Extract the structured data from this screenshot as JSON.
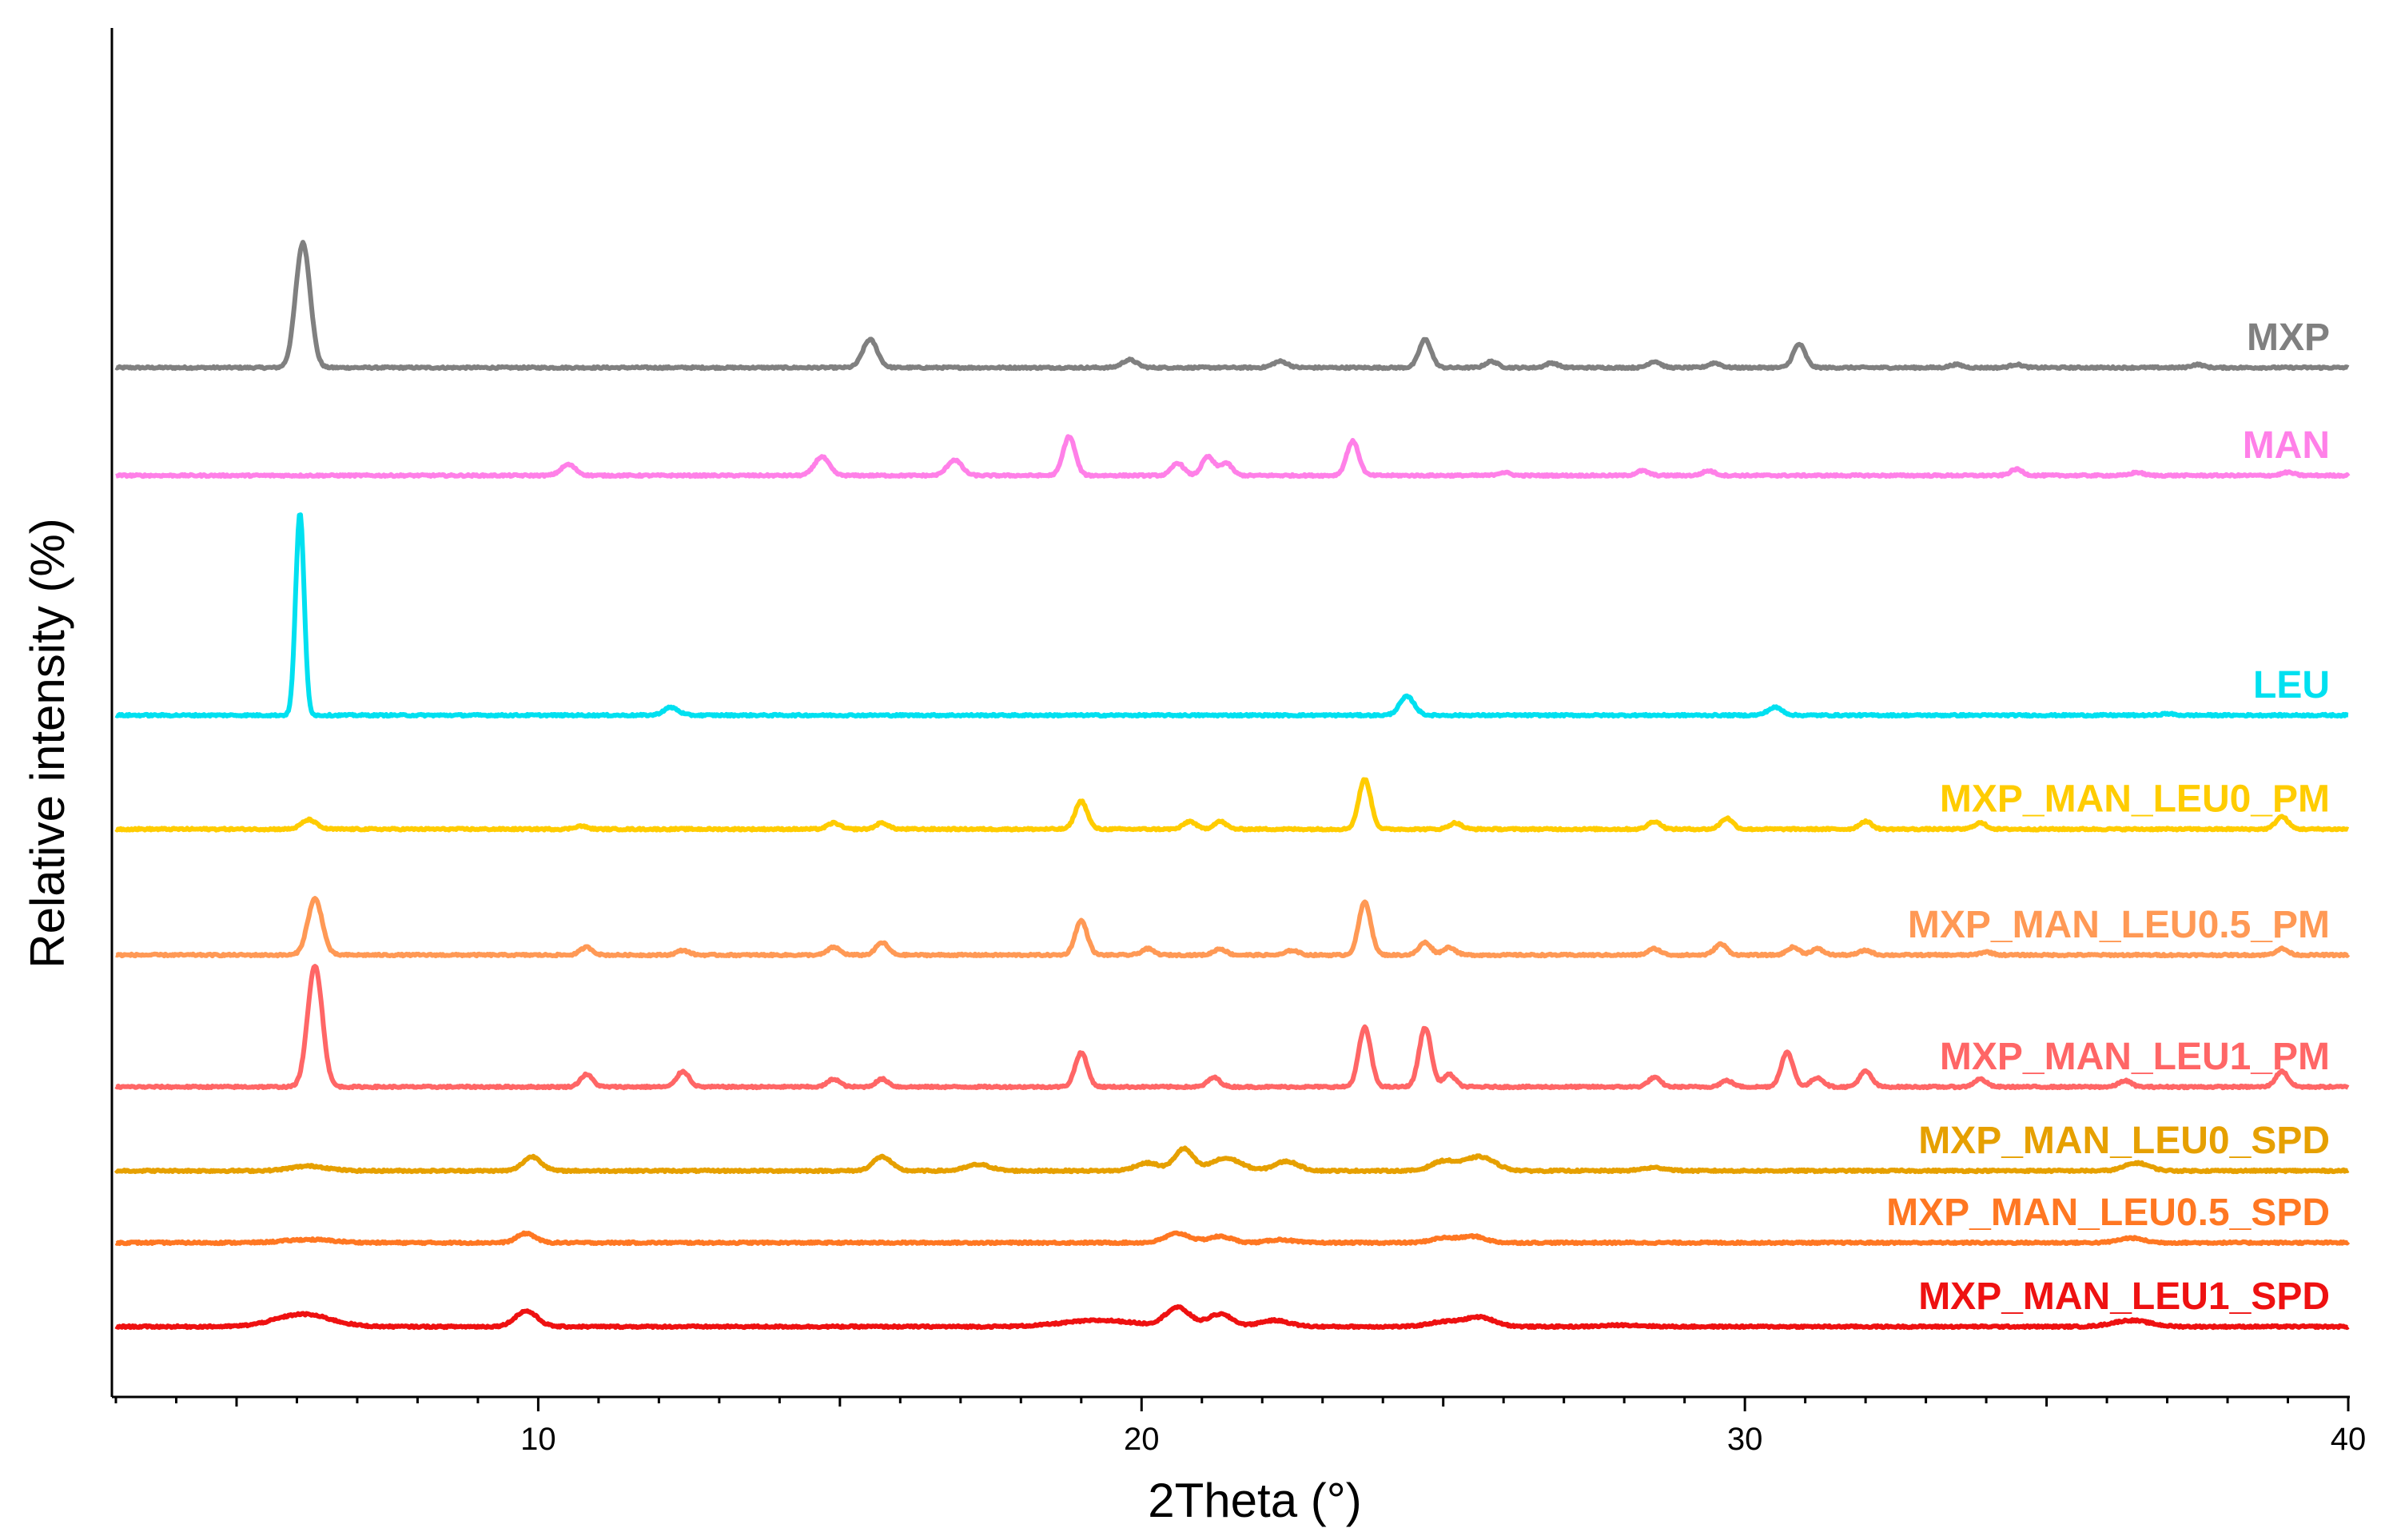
{
  "chart_data": {
    "type": "line",
    "xlabel": "2Theta (°)",
    "ylabel": "Relative intensity (%)",
    "xlim": [
      3,
      40
    ],
    "x_ticks": [
      10,
      20,
      30,
      40
    ],
    "x_tick_labels": [
      "10",
      "20",
      "30",
      "40"
    ],
    "y_ticks_shown": false,
    "grid": false,
    "legend": "labels at right end of each trace",
    "series": [
      {
        "name": "MXP",
        "color": "#808080",
        "baseline": 8,
        "peaks": [
          [
            6.1,
            80,
            0.12
          ],
          [
            15.5,
            18,
            0.12
          ],
          [
            19.8,
            5,
            0.12
          ],
          [
            22.3,
            4,
            0.12
          ],
          [
            24.7,
            18,
            0.1
          ],
          [
            25.8,
            4,
            0.1
          ],
          [
            26.8,
            3,
            0.1
          ],
          [
            28.5,
            4,
            0.1
          ],
          [
            29.5,
            3,
            0.1
          ],
          [
            30.9,
            15,
            0.1
          ],
          [
            33.5,
            2,
            0.1
          ],
          [
            34.5,
            2,
            0.1
          ],
          [
            37.5,
            2,
            0.1
          ]
        ]
      },
      {
        "name": "MAN",
        "color": "#ff80e8",
        "baseline": 7.1,
        "peaks": [
          [
            10.5,
            7,
            0.12
          ],
          [
            14.7,
            12,
            0.12
          ],
          [
            16.9,
            10,
            0.12
          ],
          [
            18.8,
            25,
            0.1
          ],
          [
            20.6,
            8,
            0.1
          ],
          [
            21.1,
            12,
            0.1
          ],
          [
            21.4,
            8,
            0.1
          ],
          [
            23.5,
            22,
            0.1
          ],
          [
            26,
            2,
            0.1
          ],
          [
            28.3,
            3,
            0.1
          ],
          [
            29.4,
            3,
            0.1
          ],
          [
            34.5,
            4,
            0.1
          ],
          [
            36.5,
            2,
            0.1
          ],
          [
            39,
            2,
            0.1
          ]
        ]
      },
      {
        "name": "LEU",
        "color": "#00e0f0",
        "baseline": 5.1,
        "peaks": [
          [
            6.05,
            130,
            0.07
          ],
          [
            12.2,
            5,
            0.12
          ],
          [
            24.4,
            12,
            0.12
          ],
          [
            30.5,
            5,
            0.12
          ],
          [
            37,
            1,
            0.1
          ]
        ]
      },
      {
        "name": "MXP_MAN_LEU0_PM",
        "color": "#ffcc00",
        "baseline": 4.15,
        "peaks": [
          [
            6.2,
            6,
            0.12
          ],
          [
            10.7,
            2,
            0.1
          ],
          [
            14.9,
            4,
            0.1
          ],
          [
            15.7,
            4,
            0.1
          ],
          [
            19,
            18,
            0.1
          ],
          [
            20.8,
            5,
            0.1
          ],
          [
            21.3,
            5,
            0.1
          ],
          [
            23.7,
            32,
            0.1
          ],
          [
            25.2,
            4,
            0.1
          ],
          [
            28.5,
            5,
            0.1
          ],
          [
            29.7,
            7,
            0.1
          ],
          [
            32,
            5,
            0.1
          ],
          [
            33.9,
            4,
            0.1
          ],
          [
            38.9,
            8,
            0.1
          ]
        ]
      },
      {
        "name": "MXP_MAN_LEU0.5_PM",
        "color": "#ff9955",
        "baseline": 3.1,
        "peaks": [
          [
            6.3,
            36,
            0.12
          ],
          [
            10.8,
            5,
            0.1
          ],
          [
            12.4,
            3,
            0.1
          ],
          [
            14.9,
            5,
            0.1
          ],
          [
            15.7,
            8,
            0.1
          ],
          [
            19,
            22,
            0.1
          ],
          [
            20.1,
            4,
            0.1
          ],
          [
            21.3,
            4,
            0.1
          ],
          [
            22.5,
            3,
            0.1
          ],
          [
            23.7,
            34,
            0.1
          ],
          [
            24.7,
            8,
            0.1
          ],
          [
            25.1,
            5,
            0.1
          ],
          [
            28.5,
            4,
            0.1
          ],
          [
            29.6,
            7,
            0.1
          ],
          [
            30.8,
            5,
            0.1
          ],
          [
            31.2,
            4,
            0.1
          ],
          [
            32,
            3,
            0.1
          ],
          [
            34,
            2,
            0.1
          ],
          [
            38.9,
            4,
            0.1
          ]
        ]
      },
      {
        "name": "MXP_MAN_LEU1_PM",
        "color": "#ff6666",
        "baseline": 2.0,
        "peaks": [
          [
            6.3,
            78,
            0.12
          ],
          [
            10.8,
            8,
            0.1
          ],
          [
            12.4,
            10,
            0.1
          ],
          [
            14.9,
            5,
            0.1
          ],
          [
            15.7,
            5,
            0.1
          ],
          [
            19,
            22,
            0.1
          ],
          [
            21.2,
            6,
            0.1
          ],
          [
            23.7,
            38,
            0.1
          ],
          [
            24.7,
            38,
            0.1
          ],
          [
            25.1,
            8,
            0.1
          ],
          [
            28.5,
            6,
            0.1
          ],
          [
            29.7,
            4,
            0.1
          ],
          [
            30.7,
            22,
            0.1
          ],
          [
            31.2,
            6,
            0.1
          ],
          [
            32,
            10,
            0.1
          ],
          [
            33.9,
            5,
            0.1
          ],
          [
            36.3,
            4,
            0.1
          ],
          [
            38.9,
            10,
            0.1
          ]
        ]
      },
      {
        "name": "MXP_MAN_LEU0_SPD",
        "color": "#e6a000",
        "baseline": 1.3,
        "peaks": [
          [
            6.2,
            3,
            0.3
          ],
          [
            9.9,
            9,
            0.15
          ],
          [
            15.7,
            9,
            0.15
          ],
          [
            17.3,
            4,
            0.2
          ],
          [
            20.1,
            5,
            0.2
          ],
          [
            20.7,
            14,
            0.15
          ],
          [
            21.4,
            8,
            0.25
          ],
          [
            22.4,
            6,
            0.2
          ],
          [
            25,
            6,
            0.2
          ],
          [
            25.6,
            9,
            0.25
          ],
          [
            28.5,
            2,
            0.2
          ],
          [
            36.5,
            5,
            0.2
          ]
        ]
      },
      {
        "name": "MXP_MAN_LEU0.5_SPD",
        "color": "#ff7722",
        "baseline": 0.7,
        "peaks": [
          [
            6.2,
            2,
            0.4
          ],
          [
            9.8,
            6,
            0.15
          ],
          [
            20.6,
            6,
            0.2
          ],
          [
            21.3,
            4,
            0.2
          ],
          [
            22.3,
            2,
            0.2
          ],
          [
            25,
            3,
            0.2
          ],
          [
            25.5,
            4,
            0.2
          ],
          [
            36.4,
            3,
            0.2
          ]
        ]
      },
      {
        "name": "MXP_MAN_LEU1_SPD",
        "color": "#ee1111",
        "baseline": 0,
        "peaks": [
          [
            6.1,
            8,
            0.45
          ],
          [
            9.8,
            10,
            0.18
          ],
          [
            19.3,
            4,
            0.6
          ],
          [
            20.6,
            12,
            0.2
          ],
          [
            21.3,
            8,
            0.2
          ],
          [
            22.2,
            4,
            0.25
          ],
          [
            25,
            3,
            0.25
          ],
          [
            25.6,
            6,
            0.25
          ],
          [
            28,
            1,
            0.3
          ],
          [
            36.4,
            4,
            0.3
          ]
        ]
      }
    ]
  }
}
